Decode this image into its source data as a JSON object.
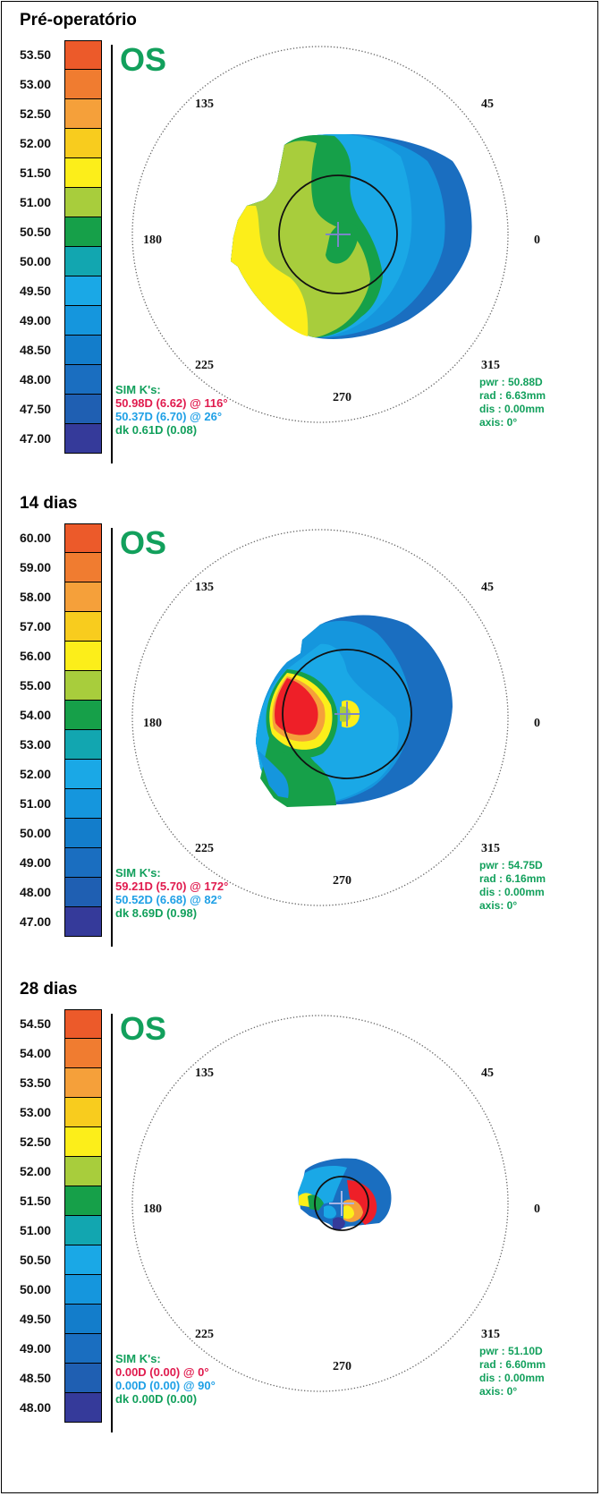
{
  "panels": [
    {
      "title": "Pré-operatório",
      "eye": "OS",
      "scale": [
        "53.50",
        "53.00",
        "52.50",
        "52.00",
        "51.50",
        "51.00",
        "50.50",
        "50.00",
        "49.50",
        "49.00",
        "48.50",
        "48.00",
        "47.50",
        "47.00"
      ],
      "angles": {
        "a135": "135",
        "a45": "45",
        "a180": "180",
        "a0": "0",
        "a225": "225",
        "a315": "315",
        "a270": "270"
      },
      "simk_label": "SIM K's:",
      "k1": "50.98D (6.62) @ 116°",
      "k2": "50.37D (6.70) @ 26°",
      "dk": "dk  0.61D (0.08)",
      "pwr": "pwr : 50.88D",
      "rad": "rad : 6.63mm",
      "dis": "dis : 0.00mm",
      "axis": "axis:  0°"
    },
    {
      "title": "14  dias",
      "eye": "OS",
      "scale": [
        "60.00",
        "59.00",
        "58.00",
        "57.00",
        "56.00",
        "55.00",
        "54.00",
        "53.00",
        "52.00",
        "51.00",
        "50.00",
        "49.00",
        "48.00",
        "47.00"
      ],
      "angles": {
        "a135": "135",
        "a45": "45",
        "a180": "180",
        "a0": "0",
        "a225": "225",
        "a315": "315",
        "a270": "270"
      },
      "simk_label": "SIM K's:",
      "k1": "59.21D (5.70) @ 172°",
      "k2": "50.52D (6.68) @ 82°",
      "dk": "dk  8.69D (0.98)",
      "pwr": "pwr : 54.75D",
      "rad": "rad : 6.16mm",
      "dis": "dis : 0.00mm",
      "axis": "axis:  0°"
    },
    {
      "title": "28  dias",
      "eye": "OS",
      "scale": [
        "54.50",
        "54.00",
        "53.50",
        "53.00",
        "52.50",
        "52.00",
        "51.50",
        "51.00",
        "50.50",
        "50.00",
        "49.50",
        "49.00",
        "48.50",
        "48.00"
      ],
      "angles": {
        "a135": "135",
        "a45": "45",
        "a180": "180",
        "a0": "0",
        "a225": "225",
        "a315": "315",
        "a270": "270"
      },
      "simk_label": "SIM K's:",
      "k1": "0.00D (0.00) @   0°",
      "k2": "0.00D (0.00) @  90°",
      "dk": "dk  0.00D (0.00)",
      "pwr": "pwr : 51.10D",
      "rad": "rad : 6.60mm",
      "dis": "dis : 0.00mm",
      "axis": "axis:  0°"
    }
  ],
  "colors": {
    "scale": [
      "#ec5a2a",
      "#f07c30",
      "#f5a03a",
      "#f8cc1e",
      "#fcee1a",
      "#a8cd3c",
      "#16a049",
      "#12a6b0",
      "#1aa8e6",
      "#1596dd",
      "#137dcb",
      "#1a6ec0",
      "#1f5fb2",
      "#353a9a"
    ]
  }
}
